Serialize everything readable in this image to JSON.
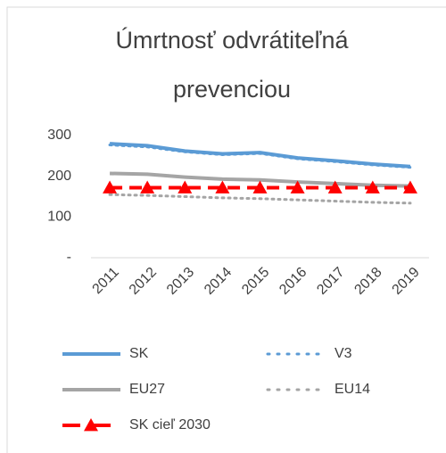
{
  "chart_data": {
    "type": "line",
    "title": "Úmrtnosť odvrátiteľná prevenciou",
    "categories": [
      "2011",
      "2012",
      "2013",
      "2014",
      "2015",
      "2016",
      "2017",
      "2018",
      "2019"
    ],
    "series": [
      {
        "name": "SK",
        "color": "#5b9bd5",
        "style": "solid",
        "values": [
          280,
          275,
          262,
          255,
          258,
          245,
          238,
          230,
          224
        ]
      },
      {
        "name": "V3",
        "color": "#5b9bd5",
        "style": "dotted",
        "values": [
          277,
          272,
          260,
          253,
          256,
          243,
          236,
          228,
          222
        ]
      },
      {
        "name": "EU27",
        "color": "#a5a5a5",
        "style": "solid",
        "values": [
          207,
          205,
          198,
          193,
          191,
          186,
          182,
          178,
          176
        ]
      },
      {
        "name": "EU14",
        "color": "#a5a5a5",
        "style": "dotted",
        "values": [
          155,
          153,
          150,
          147,
          145,
          142,
          139,
          136,
          134
        ]
      },
      {
        "name": "SK cieľ 2030",
        "color": "#ff0000",
        "style": "dashed",
        "marker": "triangle",
        "values": [
          172,
          172,
          172,
          172,
          172,
          172,
          172,
          172,
          172
        ]
      }
    ],
    "ylim": [
      0,
      300
    ],
    "yticks": [
      {
        "value": 0,
        "label": "-"
      },
      100,
      200,
      300
    ],
    "grid": false
  }
}
